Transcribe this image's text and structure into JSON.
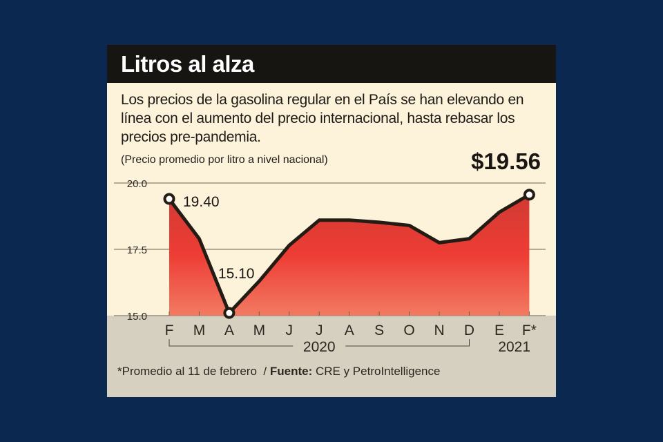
{
  "title": "Litros al alza",
  "subtitle": "Los precios de la gasolina regular en el País se han elevando en línea con el aumento del precio internacional, hasta rebasar los precios pre-pandemia.",
  "unit_note": "(Precio promedio por litro a nivel nacional)",
  "headline_value": "$19.56",
  "footnote": {
    "note": "*Promedio al 11 de febrero",
    "separator": "/",
    "source_label": "Fuente:",
    "source": "CRE y PetroIntelligence"
  },
  "colors": {
    "background": "#0b2850",
    "panel": "#fdf2da",
    "fill_top": "#d83a33",
    "fill_bottom": "#f0705a",
    "line": "#231c14",
    "band": "#d5d0bf"
  },
  "chart_data": {
    "type": "area",
    "categories": [
      "F",
      "M",
      "A",
      "M",
      "J",
      "J",
      "A",
      "S",
      "O",
      "N",
      "D",
      "E",
      "F*"
    ],
    "values": [
      19.4,
      17.9,
      15.1,
      16.3,
      17.65,
      18.6,
      18.6,
      18.52,
      18.4,
      17.75,
      17.9,
      18.9,
      19.56
    ],
    "yticks": [
      "20.0",
      "17.5",
      "15.0"
    ],
    "ytick_values": [
      20.0,
      17.5,
      15.0
    ],
    "ylim": [
      15.0,
      20.0
    ],
    "year_groups": [
      {
        "label": "2020",
        "from": 0,
        "to": 10
      },
      {
        "label": "2021",
        "from": 11,
        "to": 12
      }
    ],
    "annotations": [
      {
        "index": 0,
        "label": "19.40"
      },
      {
        "index": 2,
        "label": "15.10"
      },
      {
        "index": 12,
        "label": ""
      }
    ],
    "grid": true
  }
}
